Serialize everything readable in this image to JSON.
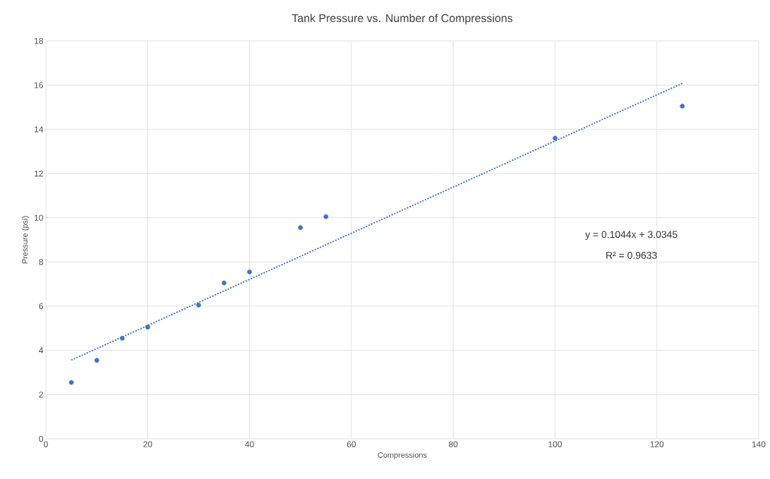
{
  "chart_data": {
    "type": "scatter",
    "title": "Tank Pressure vs. Number of Compressions",
    "xlabel": "Compressions",
    "ylabel": "Pressure (psi)",
    "x": [
      5,
      10,
      15,
      20,
      30,
      35,
      40,
      50,
      55,
      100,
      125
    ],
    "series": [
      {
        "color": "#4472c4",
        "marker": "circle",
        "values": [
          2.55,
          3.55,
          4.55,
          5.05,
          6.05,
          7.05,
          7.55,
          9.55,
          10.05,
          13.6,
          15.05
        ]
      },
      {
        "type": "line",
        "color": "#4472c4",
        "line_style": "dotted",
        "marker": "none",
        "x": [
          5,
          125
        ],
        "values": [
          3.56,
          16.08
        ]
      }
    ],
    "annotations": [
      "y = 0.1044x + 3.0345",
      "R² = 0.9633"
    ],
    "xlim": [
      0,
      140
    ],
    "xticks": [
      0,
      20,
      40,
      60,
      80,
      100,
      120,
      140
    ],
    "ylim": [
      0,
      18
    ],
    "yticks": [
      0,
      2,
      4,
      6,
      8,
      10,
      12,
      14,
      16,
      18
    ],
    "grid": true
  }
}
